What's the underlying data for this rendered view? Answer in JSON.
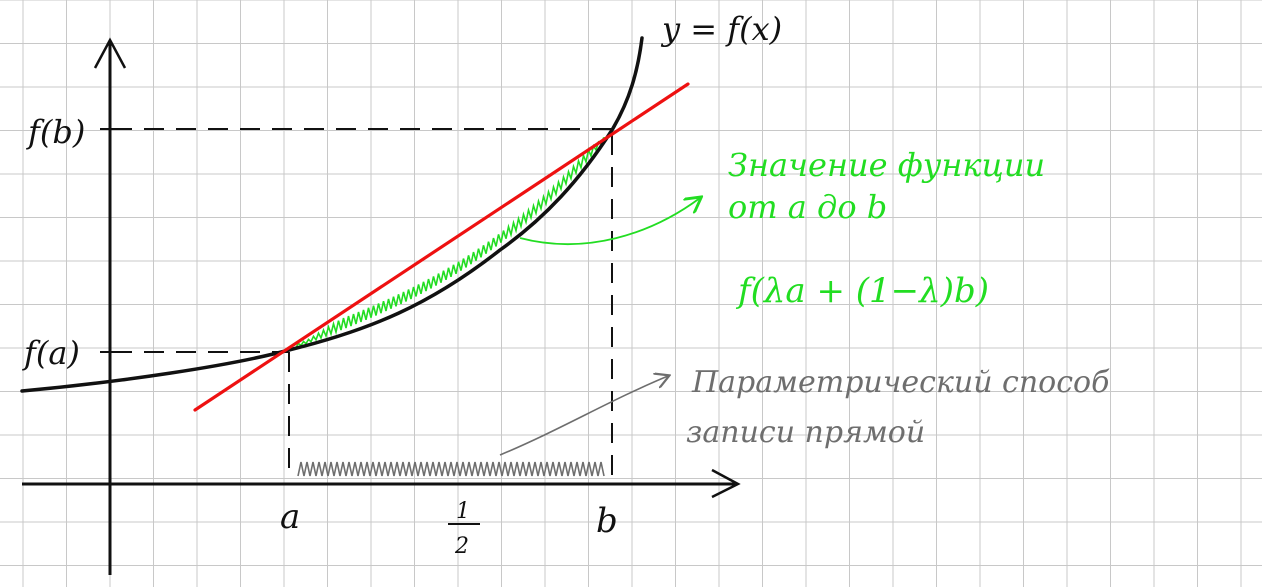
{
  "labels": {
    "curve": "y = f(x)",
    "fb": "f(b)",
    "fa": "f(a)",
    "x_a": "a",
    "x_half_num": "1",
    "x_half_den": "2",
    "x_b": "b"
  },
  "annotations": {
    "green_line1": "Значение функции",
    "green_line2": "от a до b",
    "green_formula": "f(λa + (1−λ)b)",
    "gray_line1": "Параметрический способ",
    "gray_line2": "записи прямой"
  },
  "colors": {
    "grid": "#c8c8c8",
    "axes": "#111111",
    "curve": "#111111",
    "secant": "#ee1111",
    "green": "#22dd22",
    "gray": "#6e6e6e"
  }
}
